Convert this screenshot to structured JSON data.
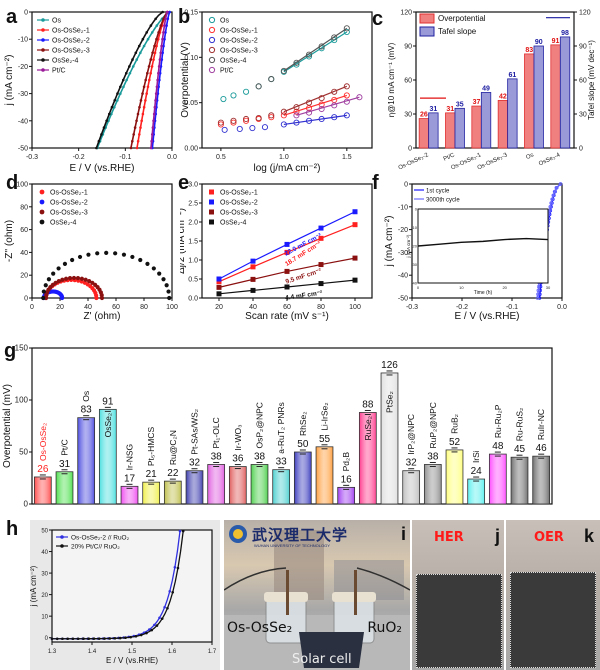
{
  "panel_labels": {
    "a": "a",
    "b": "b",
    "c": "c",
    "d": "d",
    "e": "e",
    "f": "f",
    "g": "g",
    "h": "h",
    "i": "i",
    "j": "j",
    "k": "k"
  },
  "chart_data": [
    {
      "id": "a",
      "type": "line",
      "title": "",
      "xlabel": "E / V (vs.RHE)",
      "ylabel": "j (mA cm⁻²)",
      "xlim": [
        -0.3,
        0.0
      ],
      "ylim": [
        -50,
        0
      ],
      "xticks": [
        "-0.3",
        "-0.2",
        "-0.1",
        "0.0"
      ],
      "yticks": [
        "0",
        "-10",
        "-20",
        "-30",
        "-40",
        "-50"
      ],
      "legend": "top-left",
      "series": [
        {
          "name": "Os",
          "color": "#1a9a9a",
          "onset": -0.005,
          "e_at_50": -0.16
        },
        {
          "name": "Os-OsSe₂-1",
          "color": "#ff2020",
          "onset": -0.01,
          "e_at_50": -0.075
        },
        {
          "name": "Os-OsSe₂-2",
          "color": "#1a1aff",
          "onset": -0.005,
          "e_at_50": -0.042
        },
        {
          "name": "Os-OsSe₂-3",
          "color": "#8b1010",
          "onset": -0.01,
          "e_at_50": -0.088
        },
        {
          "name": "OsSe₂-4",
          "color": "#111111",
          "onset": -0.02,
          "e_at_50": -0.162
        },
        {
          "name": "Pt/C",
          "color": "#9a1a9a",
          "onset": -0.01,
          "e_at_50": -0.045
        }
      ]
    },
    {
      "id": "b",
      "type": "scatter",
      "title": "",
      "xlabel": "log (j/mA cm⁻²)",
      "ylabel": "Overpotential (V)",
      "xlim": [
        0.35,
        1.7
      ],
      "ylim": [
        0.0,
        0.15
      ],
      "xticks": [
        "0.5",
        "1.0",
        "1.5"
      ],
      "yticks": [
        "0.00",
        "0.05",
        "0.10",
        "0.15"
      ],
      "legend": "top-left",
      "series": [
        {
          "name": "Os",
          "color": "#1a9a9a",
          "x": [
            0.52,
            0.6,
            0.7,
            0.8,
            0.9,
            1.0,
            1.1,
            1.2,
            1.3,
            1.4,
            1.5
          ],
          "y": [
            0.054,
            0.058,
            0.062,
            0.068,
            0.076,
            0.084,
            0.092,
            0.101,
            0.11,
            0.119,
            0.128
          ]
        },
        {
          "name": "Os-OsSe₂-1",
          "color": "#ff3030",
          "x": [
            0.5,
            0.6,
            0.7,
            0.8,
            0.9,
            1.0,
            1.1,
            1.2,
            1.3,
            1.4,
            1.5
          ],
          "y": [
            0.026,
            0.028,
            0.03,
            0.032,
            0.034,
            0.036,
            0.04,
            0.044,
            0.048,
            0.053,
            0.058
          ]
        },
        {
          "name": "Os-OsSe₂-2",
          "color": "#3030d0",
          "x": [
            0.53,
            0.65,
            0.75,
            0.85,
            1.0,
            1.1,
            1.2,
            1.3,
            1.4,
            1.5
          ],
          "y": [
            0.02,
            0.021,
            0.022,
            0.023,
            0.026,
            0.028,
            0.03,
            0.032,
            0.034,
            0.036
          ]
        },
        {
          "name": "Os-OsSe₂-3",
          "color": "#a03030",
          "x": [
            0.5,
            0.6,
            0.7,
            0.8,
            0.9,
            1.0,
            1.1,
            1.2,
            1.3,
            1.4,
            1.5
          ],
          "y": [
            0.028,
            0.03,
            0.032,
            0.033,
            0.036,
            0.04,
            0.045,
            0.05,
            0.055,
            0.062,
            0.068
          ]
        },
        {
          "name": "OsSe₂-4",
          "color": "#555555",
          "x": [
            0.8,
            0.9,
            1.0,
            1.1,
            1.2,
            1.3,
            1.4,
            1.5
          ],
          "y": [
            0.068,
            0.076,
            0.085,
            0.094,
            0.103,
            0.112,
            0.122,
            0.132
          ]
        },
        {
          "name": "Pt/C",
          "color": "#a040a0",
          "x": [
            1.1,
            1.2,
            1.3,
            1.4,
            1.5,
            1.6
          ],
          "y": [
            0.036,
            0.039,
            0.043,
            0.047,
            0.051,
            0.056
          ]
        }
      ]
    },
    {
      "id": "c",
      "type": "bar",
      "title": "",
      "xlabel": "",
      "ylabel": "η@10 mA cm⁻¹ (mV)",
      "ylabel_right": "Tafel slope (mV dec⁻¹)",
      "ylim": [
        0,
        120
      ],
      "yticks": [
        "0",
        "30",
        "60",
        "90",
        "120"
      ],
      "legend": "top-left",
      "categories": [
        "Os-OsSe₂-2",
        "Pt/C",
        "Os-OsSe₂-1",
        "Os-OsSe₂-3",
        "Os",
        "OsSe₂-4"
      ],
      "series": [
        {
          "name": "Overpotential",
          "color": "#f08080",
          "label_color": "#e01010",
          "values": [
            26,
            31,
            37,
            42,
            83,
            91
          ]
        },
        {
          "name": "Tafel slope",
          "color": "#9a9ad8",
          "label_color": "#1a1aa0",
          "values": [
            31,
            35,
            49,
            61,
            90,
            98
          ]
        }
      ]
    },
    {
      "id": "d",
      "type": "scatter",
      "title": "",
      "xlabel": "Z' (ohm)",
      "ylabel": "-Z'' (ohm)",
      "xlim": [
        0,
        100
      ],
      "ylim": [
        0,
        100
      ],
      "xticks": [
        "0",
        "20",
        "40",
        "60",
        "80",
        "100"
      ],
      "yticks": [
        "0",
        "20",
        "40",
        "60",
        "80",
        "100"
      ],
      "legend": "top-left",
      "series": [
        {
          "name": "Os-OsSe₂-1",
          "color": "#ff2020",
          "center": 28,
          "radius": 18,
          "start": 8
        },
        {
          "name": "Os-OsSe₂-2",
          "color": "#1a1aff",
          "center": 15,
          "radius": 6.5,
          "start": 8
        },
        {
          "name": "Os-OsSe₂-3",
          "color": "#8b1010",
          "center": 30,
          "radius": 20,
          "start": 9
        },
        {
          "name": "OsSe₂-4",
          "color": "#111111",
          "center": 53,
          "radius": 45,
          "start": 8
        }
      ]
    },
    {
      "id": "e",
      "type": "line",
      "title": "",
      "xlabel": "Scan rate (mV s⁻¹)",
      "ylabel": "Δj/2 (mA cm⁻²)",
      "xlim": [
        10,
        110
      ],
      "ylim": [
        0.0,
        3.0
      ],
      "xticks": [
        "20",
        "40",
        "60",
        "80",
        "100"
      ],
      "yticks": [
        "0.0",
        "0.5",
        "1.0",
        "1.5",
        "2.0",
        "2.5",
        "3.0"
      ],
      "legend": "top-left",
      "x": [
        20,
        40,
        60,
        80,
        100
      ],
      "series": [
        {
          "name": "Os-OsSe₂-1",
          "color": "#ff2020",
          "values": [
            0.43,
            0.82,
            1.2,
            1.57,
            1.93
          ],
          "annotation": "18.7 mF cm⁻²"
        },
        {
          "name": "Os-OsSe₂-2",
          "color": "#1a1aff",
          "values": [
            0.5,
            0.97,
            1.41,
            1.84,
            2.27
          ],
          "annotation": "22.0 mF cm⁻²"
        },
        {
          "name": "Os-OsSe₂-3",
          "color": "#8b1010",
          "values": [
            0.28,
            0.49,
            0.7,
            0.88,
            1.05
          ],
          "annotation": "9.5 mF cm⁻²"
        },
        {
          "name": "OsSe₂-4",
          "color": "#111111",
          "values": [
            0.11,
            0.2,
            0.29,
            0.38,
            0.47
          ],
          "annotation": "4.4 mF cm⁻²"
        }
      ]
    },
    {
      "id": "f",
      "type": "line",
      "title": "",
      "xlabel": "E / V (vs.RHE)",
      "ylabel": "j (mA cm⁻²)",
      "xlim": [
        -0.3,
        0.0
      ],
      "ylim": [
        -50,
        0
      ],
      "xticks": [
        "-0.3",
        "-0.2",
        "-0.1",
        "0.0"
      ],
      "yticks": [
        "0",
        "-10",
        "-20",
        "-30",
        "-40",
        "-50"
      ],
      "legend": "top-left",
      "series": [
        {
          "name": "1st cycle",
          "color": "#1a1aff"
        },
        {
          "name": "3000th cycle",
          "color": "#6a6aff"
        }
      ],
      "inset": {
        "xlabel": "Time (h)",
        "ylabel": "j (mA cm⁻²)",
        "xlim": [
          0,
          30
        ],
        "ylim": [
          -40,
          0
        ],
        "xticks": [
          "0",
          "10",
          "20",
          "30"
        ],
        "yticks": [
          "0",
          "-10",
          "-20",
          "-30",
          "-40"
        ],
        "x": [
          0,
          5,
          10,
          15,
          20,
          25,
          30
        ],
        "y": [
          -20,
          -19,
          -18,
          -17.5,
          -16.5,
          -16,
          -16.5
        ]
      }
    },
    {
      "id": "g",
      "type": "bar",
      "title": "",
      "xlabel": "",
      "ylabel": "Overpotential (mV)",
      "ylim": [
        0,
        150
      ],
      "yticks": [
        "0",
        "50",
        "100",
        "150"
      ],
      "categories": [
        "Os-OsSe₂",
        "Pt/C",
        "Os",
        "OsSe₂",
        "Ir-NSG",
        "Pt₅-HMCS",
        "Ru@C₂N",
        "Pt-SAs/WS₂",
        "Pt₁-OLC",
        "Ir-WO₃",
        "OsP₂@NPC",
        "a-RuT₂ PNRs",
        "RhSe₂",
        "Li-IrSe₂",
        "Pd₂B",
        "RuSe₂",
        "PtSe₂",
        "IrP₂@NPC",
        "RuP₂@NPC",
        "RuB₂",
        "IrSi",
        "Ru-Ru₂P",
        "Ru-RuS₂",
        "RuIr-NC"
      ],
      "values": [
        26,
        31,
        83,
        91,
        17,
        21,
        22,
        32,
        38,
        36,
        38,
        33,
        50,
        55,
        16,
        88,
        126,
        32,
        38,
        52,
        24,
        48,
        45,
        46
      ],
      "colors": [
        "#ff5050",
        "#50e050",
        "#5050e0",
        "#50e0e0",
        "#f050f0",
        "#f0f050",
        "#c0c050",
        "#4040b0",
        "#e060e0",
        "#e06060",
        "#50d050",
        "#50d0d0",
        "#4040c0",
        "#ffa040",
        "#a040f0",
        "#ff4090",
        "#e0e0e0",
        "#c0c0c0",
        "#909090",
        "#ffff80",
        "#60f0f0",
        "#ff50ff",
        "#707070",
        "#707070"
      ],
      "highlight_label": "Os-OsSe₂",
      "highlight_color": "#ff2020"
    },
    {
      "id": "h",
      "type": "line",
      "title": "",
      "xlabel": "E / V (vs.RHE)",
      "ylabel": "j (mA cm⁻²)",
      "xlim": [
        1.3,
        1.7
      ],
      "ylim": [
        -2,
        50
      ],
      "xticks": [
        "1.3",
        "1.4",
        "1.5",
        "1.6",
        "1.7"
      ],
      "yticks": [
        "0",
        "10",
        "20",
        "30",
        "40",
        "50"
      ],
      "legend": "top-left",
      "series": [
        {
          "name": "Os-OsSe₂-2 // RuO₂",
          "color": "#3030e0",
          "e_at_50": 1.62
        },
        {
          "name": "20% Pt/C// RuO₂",
          "color": "#111111",
          "e_at_50": 1.628
        }
      ]
    }
  ],
  "photo_i": {
    "university_name": "武汉理工大学",
    "university_en": "WUHAN UNIVERSITY OF TECHNOLOGY",
    "left_label": "Os-OsSe₂",
    "right_label": "RuO₂",
    "bottom_label": "Solar cell"
  },
  "photo_j": {
    "label": "HER"
  },
  "photo_k": {
    "label": "OER"
  }
}
